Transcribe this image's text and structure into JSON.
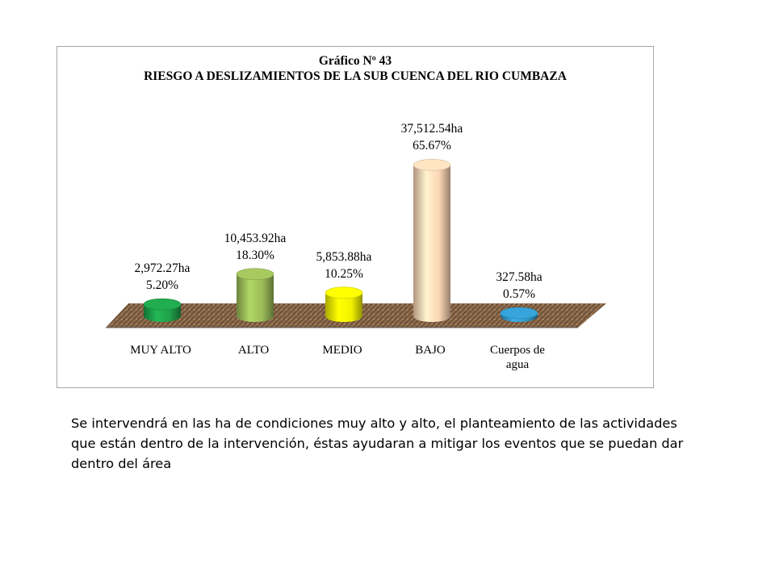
{
  "chart_data": {
    "type": "bar",
    "title": "Gráfico Nº 43",
    "subtitle": "RIESGO A DESLIZAMIENTOS DE LA SUB CUENCA DEL RIO CUMBAZA",
    "categories": [
      "MUY ALTO",
      "ALTO",
      "MEDIO",
      "BAJO",
      "Cuerpos de\nagua"
    ],
    "values": [
      2972.27,
      10453.92,
      5853.88,
      37512.54,
      327.58
    ],
    "value_labels": [
      "2,972.27ha",
      "10,453.92ha",
      "5,853.88ha",
      "37,512.54ha",
      "327.58ha"
    ],
    "percent_labels": [
      "5.20%",
      "18.30%",
      "10.25%",
      "65.67%",
      "0.57%"
    ],
    "percents": [
      5.2,
      18.3,
      10.25,
      65.67,
      0.57
    ],
    "colors": [
      "#1fa04a",
      "#9bbb59",
      "#f2f200",
      "#fbd4b4",
      "#3399cc"
    ],
    "style": "3d-cylinder",
    "legend": "none",
    "grid": false
  },
  "caption": "Se intervendrá en las ha de condiciones muy alto y alto, el planteamiento de las actividades que están dentro de la intervención, éstas ayudaran a mitigar los eventos que se puedan dar dentro del área"
}
